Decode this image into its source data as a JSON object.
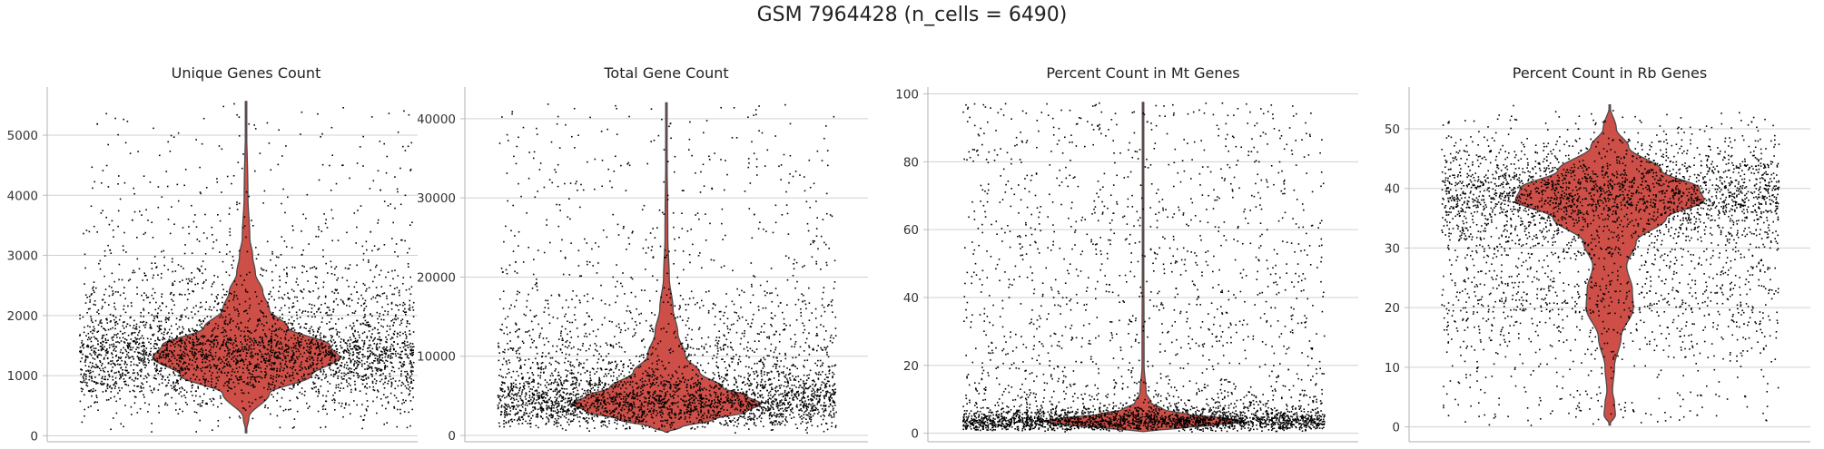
{
  "suptitle": "GSM 7964428 (n_cells = 6490)",
  "style": {
    "violin_color": "#cd4f48",
    "violin_edge": "#4a4a4a",
    "point_color": "#000000",
    "grid_color": "#d0d0d0",
    "axis_color": "#bdbdbd"
  },
  "chart_data": [
    {
      "type": "violin",
      "title": "Unique Genes Count",
      "xlabel": "",
      "ylabel": "",
      "ylim": [
        -100,
        5800
      ],
      "yticks": [
        0,
        1000,
        2000,
        3000,
        4000,
        5000
      ],
      "grid": true,
      "jitter_points": true,
      "range": [
        50,
        5560
      ],
      "density": [
        [
          50,
          0.0
        ],
        [
          300,
          0.03
        ],
        [
          700,
          0.25
        ],
        [
          1000,
          0.7
        ],
        [
          1300,
          1.0
        ],
        [
          1500,
          0.9
        ],
        [
          1800,
          0.45
        ],
        [
          2100,
          0.25
        ],
        [
          2400,
          0.18
        ],
        [
          2700,
          0.1
        ],
        [
          3000,
          0.07
        ],
        [
          3300,
          0.04
        ],
        [
          4000,
          0.02
        ],
        [
          5560,
          0.0
        ]
      ],
      "sample_values": [
        1320,
        1150,
        1480,
        1710,
        1260,
        980,
        2050,
        1400,
        1850,
        2420,
        1190,
        3100,
        760,
        1560,
        2680,
        1330,
        4100,
        1010,
        1640,
        5200,
        2250,
        1370,
        3600,
        900,
        1470
      ]
    },
    {
      "type": "violin",
      "title": "Total Gene Count",
      "xlabel": "",
      "ylabel": "",
      "ylim": [
        -800,
        44000
      ],
      "yticks": [
        0,
        10000,
        20000,
        30000,
        40000
      ],
      "grid": true,
      "jitter_points": true,
      "range": [
        400,
        42000
      ],
      "density": [
        [
          400,
          0.0
        ],
        [
          1000,
          0.15
        ],
        [
          2000,
          0.5
        ],
        [
          3000,
          0.85
        ],
        [
          4000,
          1.0
        ],
        [
          5000,
          0.85
        ],
        [
          6000,
          0.6
        ],
        [
          8000,
          0.35
        ],
        [
          10000,
          0.2
        ],
        [
          13000,
          0.12
        ],
        [
          16000,
          0.07
        ],
        [
          20000,
          0.03
        ],
        [
          25000,
          0.015
        ],
        [
          42000,
          0.0
        ]
      ],
      "sample_values": [
        3900,
        4300,
        2800,
        5200,
        3600,
        6100,
        4100,
        7800,
        3300,
        4700,
        9800,
        2500,
        5600,
        12500,
        3700,
        4500,
        17000,
        6800,
        3100,
        22000,
        4900,
        28000,
        3500,
        39500,
        8400
      ]
    },
    {
      "type": "violin",
      "title": "Percent Count in Mt Genes",
      "xlabel": "",
      "ylabel": "",
      "ylim": [
        -2.5,
        102
      ],
      "yticks": [
        0,
        20,
        40,
        60,
        80,
        100
      ],
      "grid": true,
      "jitter_points": true,
      "range": [
        0.5,
        97.5
      ],
      "density": [
        [
          0.5,
          0.0
        ],
        [
          1.5,
          0.35
        ],
        [
          2.5,
          0.75
        ],
        [
          3.5,
          1.0
        ],
        [
          4.5,
          0.8
        ],
        [
          5.5,
          0.45
        ],
        [
          7,
          0.2
        ],
        [
          9,
          0.08
        ],
        [
          12,
          0.03
        ],
        [
          20,
          0.01
        ],
        [
          97.5,
          0.0
        ]
      ],
      "sample_values": [
        3.2,
        2.8,
        4.1,
        3.6,
        2.4,
        5.0,
        3.9,
        1.9,
        4.6,
        3.3,
        6.2,
        2.7,
        8.5,
        3.8,
        12.0,
        4.4,
        19.0,
        2.2,
        26.0,
        3.5,
        44.0,
        5.6,
        56.0,
        92.0,
        3.0
      ]
    },
    {
      "type": "violin",
      "title": "Percent Count in Rb Genes",
      "xlabel": "",
      "ylabel": "",
      "ylim": [
        -2.5,
        57
      ],
      "yticks": [
        0,
        10,
        20,
        30,
        40,
        50
      ],
      "grid": true,
      "jitter_points": true,
      "range": [
        0.3,
        54
      ],
      "density": [
        [
          0.3,
          0.0
        ],
        [
          2,
          0.06
        ],
        [
          4,
          0.05
        ],
        [
          6,
          0.03
        ],
        [
          10,
          0.05
        ],
        [
          15,
          0.12
        ],
        [
          20,
          0.25
        ],
        [
          23,
          0.24
        ],
        [
          27,
          0.18
        ],
        [
          31,
          0.28
        ],
        [
          35,
          0.6
        ],
        [
          38,
          1.0
        ],
        [
          40,
          0.95
        ],
        [
          43,
          0.55
        ],
        [
          47,
          0.2
        ],
        [
          50,
          0.07
        ],
        [
          54,
          0.0
        ]
      ],
      "sample_values": [
        38.5,
        40.2,
        36.8,
        41.5,
        22.4,
        39.1,
        34.0,
        19.8,
        42.8,
        37.6,
        27.5,
        44.1,
        12.3,
        38.0,
        31.2,
        46.5,
        5.2,
        39.8,
        24.6,
        35.5,
        50.1,
        2.1,
        40.9,
        16.4,
        37.2
      ]
    }
  ]
}
